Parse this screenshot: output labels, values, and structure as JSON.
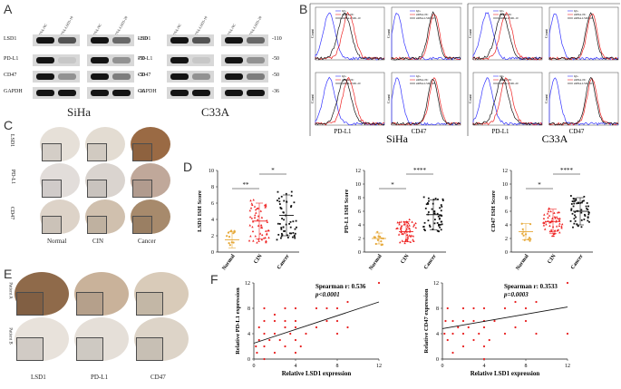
{
  "panel_letters": {
    "A": "A",
    "B": "B",
    "C": "C",
    "D": "D",
    "E": "E",
    "F": "F"
  },
  "panelA": {
    "siha": {
      "cell_line": "SiHa",
      "rows": [
        "LSD1",
        "PD-L1",
        "CD47",
        "GAPDH"
      ],
      "mw": [
        "-110",
        "-50",
        "-50",
        "-36"
      ],
      "lanes": [
        "siRNA-NC",
        "siRNA-LSD1-10",
        "siRNA-NC",
        "siRNA-LSD1-20"
      ]
    },
    "c33a": {
      "cell_line": "C33A",
      "rows": [
        "LSD1",
        "PD-L1",
        "CD47",
        "GAPDH"
      ],
      "mw": [
        "-110",
        "-50",
        "-50",
        "-36"
      ],
      "lanes": [
        "siRNA-NC",
        "siRNA-LSD1-10",
        "siRNA-NC",
        "siRNA-LSD1-20"
      ]
    }
  },
  "panelB": {
    "cell_lines": [
      "SiHa",
      "C33A"
    ],
    "markers": [
      "PD-L1",
      "CD47"
    ],
    "y_label": "Count",
    "legend_top": [
      "IgG",
      "siRNA-NC",
      "siRNA-LSD1-10"
    ],
    "legend_bottom": [
      "IgG",
      "siRNA-NC",
      "siRNA-LSD1-20"
    ],
    "colors": {
      "igg": "#3333ff",
      "nc": "#ee2222",
      "kd": "#111111"
    }
  },
  "panelC": {
    "rows": [
      "LSD1",
      "PD-L1",
      "CD47"
    ],
    "cols": [
      "Normal",
      "CIN",
      "Cancer"
    ]
  },
  "chart_data": [
    {
      "type": "scatter",
      "title": "",
      "ylabel": "LSD1 ISH Score",
      "categories": [
        "Normal",
        "CIN",
        "Cancer"
      ],
      "ylim": [
        0,
        10
      ],
      "yticks": [
        "0",
        "2",
        "4",
        "6",
        "8",
        "10"
      ],
      "means": [
        1.5,
        3.8,
        4.5
      ],
      "sds": [
        1.0,
        2.2,
        2.5
      ],
      "colors": [
        "#e6a93a",
        "#ee2222",
        "#111111"
      ],
      "significance": [
        {
          "from": 0,
          "to": 1,
          "label": "**"
        },
        {
          "from": 1,
          "to": 2,
          "label": "*"
        }
      ]
    },
    {
      "type": "scatter",
      "title": "",
      "ylabel": "PD-L1 ISH Score",
      "categories": [
        "Normal",
        "CIN",
        "Cancer"
      ],
      "ylim": [
        0,
        12
      ],
      "yticks": [
        "0",
        "2",
        "4",
        "6",
        "8",
        "10",
        "12"
      ],
      "means": [
        2.0,
        3.0,
        5.5
      ],
      "sds": [
        0.8,
        1.5,
        2.2
      ],
      "colors": [
        "#e6a93a",
        "#ee2222",
        "#111111"
      ],
      "significance": [
        {
          "from": 0,
          "to": 1,
          "label": "*"
        },
        {
          "from": 1,
          "to": 2,
          "label": "****"
        }
      ]
    },
    {
      "type": "scatter",
      "title": "",
      "ylabel": "CD47 ISH Score",
      "categories": [
        "Normal",
        "CIN",
        "Cancer"
      ],
      "ylim": [
        0,
        12
      ],
      "yticks": [
        "0",
        "2",
        "4",
        "6",
        "8",
        "10",
        "12"
      ],
      "means": [
        3.0,
        4.5,
        6.0
      ],
      "sds": [
        1.2,
        1.8,
        2.0
      ],
      "colors": [
        "#e6a93a",
        "#ee2222",
        "#111111"
      ],
      "significance": [
        {
          "from": 0,
          "to": 1,
          "label": "*"
        },
        {
          "from": 1,
          "to": 2,
          "label": "****"
        }
      ]
    },
    {
      "type": "scatter",
      "title": "",
      "xlabel": "Relative LSD1 expression",
      "ylabel": "Relative PD-L1 expression",
      "xlim": [
        0,
        12
      ],
      "ylim": [
        0,
        12
      ],
      "xticks": [
        "0",
        "4",
        "8",
        "12"
      ],
      "yticks": [
        "0",
        "4",
        "8",
        "12"
      ],
      "annotation": [
        "Spearman r: 0.536",
        "p<0.0001"
      ],
      "regression": {
        "x": [
          0,
          12
        ],
        "y": [
          2.5,
          9.0
        ]
      },
      "points": [
        [
          0.2,
          2
        ],
        [
          0.3,
          1
        ],
        [
          0.5,
          3
        ],
        [
          0.5,
          5
        ],
        [
          1,
          0
        ],
        [
          1,
          2
        ],
        [
          1,
          4
        ],
        [
          1,
          6
        ],
        [
          1,
          8
        ],
        [
          1.5,
          3
        ],
        [
          2,
          1
        ],
        [
          2,
          4
        ],
        [
          2,
          6
        ],
        [
          2,
          7
        ],
        [
          2.5,
          3
        ],
        [
          3,
          2
        ],
        [
          3,
          5
        ],
        [
          3,
          6
        ],
        [
          3,
          8
        ],
        [
          3.5,
          4
        ],
        [
          4,
          1
        ],
        [
          4,
          3
        ],
        [
          4,
          5
        ],
        [
          4,
          6
        ],
        [
          4,
          8
        ],
        [
          4.5,
          2
        ],
        [
          5,
          4
        ],
        [
          6,
          5
        ],
        [
          6,
          8
        ],
        [
          7,
          6
        ],
        [
          7,
          8
        ],
        [
          8,
          4
        ],
        [
          8,
          6
        ],
        [
          8,
          8
        ],
        [
          9,
          9
        ],
        [
          9,
          5
        ],
        [
          12,
          12
        ]
      ]
    },
    {
      "type": "scatter",
      "title": "",
      "xlabel": "Relative LSD1 expression",
      "ylabel": "Relative CD47 expression",
      "xlim": [
        0,
        12
      ],
      "ylim": [
        0,
        12
      ],
      "xticks": [
        "0",
        "4",
        "8",
        "12"
      ],
      "yticks": [
        "0",
        "4",
        "8",
        "12"
      ],
      "annotation": [
        "Spearman r: 0.3533",
        "p=0.0003"
      ],
      "regression": {
        "x": [
          0,
          12
        ],
        "y": [
          4.8,
          8.2
        ]
      },
      "points": [
        [
          0.2,
          4
        ],
        [
          0.3,
          6
        ],
        [
          0.5,
          3
        ],
        [
          0.5,
          8
        ],
        [
          1,
          1
        ],
        [
          1,
          4
        ],
        [
          1,
          6
        ],
        [
          1.5,
          5
        ],
        [
          2,
          2
        ],
        [
          2,
          4
        ],
        [
          2,
          6
        ],
        [
          2,
          8
        ],
        [
          2.5,
          5
        ],
        [
          3,
          3
        ],
        [
          3,
          6
        ],
        [
          3,
          8
        ],
        [
          3.5,
          4
        ],
        [
          4,
          0
        ],
        [
          4,
          2
        ],
        [
          4,
          5
        ],
        [
          4,
          6
        ],
        [
          4,
          8
        ],
        [
          4.5,
          3
        ],
        [
          5,
          6
        ],
        [
          6,
          4
        ],
        [
          6,
          8
        ],
        [
          7,
          5
        ],
        [
          7,
          9
        ],
        [
          8,
          6
        ],
        [
          8,
          8
        ],
        [
          9,
          9
        ],
        [
          9,
          4
        ],
        [
          12,
          12
        ],
        [
          12,
          4
        ]
      ]
    }
  ],
  "panelE": {
    "rows": [
      "Patient A",
      "Patient B"
    ],
    "cols": [
      "LSD1",
      "PD-L1",
      "CD47"
    ]
  }
}
